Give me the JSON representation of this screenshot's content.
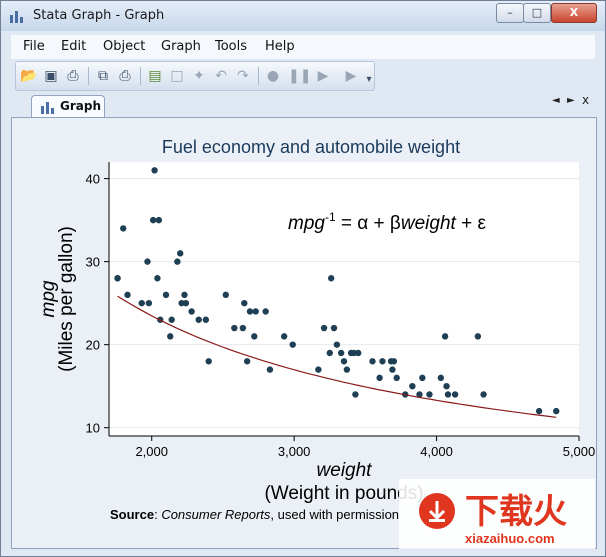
{
  "window": {
    "title": "Stata Graph - Graph",
    "controls": {
      "minimize": "–",
      "maximize": "□",
      "close": "X"
    }
  },
  "menu": [
    "File",
    "Edit",
    "Object",
    "Graph",
    "Tools",
    "Help"
  ],
  "toolbar": {
    "icons": [
      "open-icon",
      "save-icon",
      "print-icon",
      "copy-icon",
      "paste-icon",
      "graph-editor-icon",
      "select-icon",
      "pointer-icon",
      "undo-icon",
      "redo-icon",
      "record-icon",
      "pause-icon",
      "play-icon",
      "more-icon"
    ]
  },
  "tab": {
    "label": "Graph",
    "nav_left": "◄",
    "nav_right": "►",
    "close": "x"
  },
  "chart_data": {
    "type": "scatter",
    "title": "Fuel economy and automobile weight",
    "xlabel_var": "weight",
    "xlabel_desc": "(Weight in pounds)",
    "ylabel_var": "mpg",
    "ylabel_desc": "(Miles per gallon)",
    "xlim": [
      1700,
      5000
    ],
    "ylim": [
      9,
      42
    ],
    "xticks": [
      {
        "v": 2000,
        "label": "2,000"
      },
      {
        "v": 3000,
        "label": "3,000"
      },
      {
        "v": 4000,
        "label": "4,000"
      },
      {
        "v": 5000,
        "label": "5,000"
      }
    ],
    "yticks": [
      {
        "v": 10,
        "label": "10"
      },
      {
        "v": 20,
        "label": "20"
      },
      {
        "v": 30,
        "label": "30"
      },
      {
        "v": 40,
        "label": "40"
      }
    ],
    "grid": true,
    "annotation": {
      "var": "mpg",
      "sup": "-1",
      "eq": " = α + β",
      "var2": "weight",
      "tail": " + ε"
    },
    "note": {
      "prefix": "Source",
      "sep": ": ",
      "source": "Consumer Reports",
      "tail": ", used with permission"
    },
    "series": [
      {
        "points": [
          [
            1760,
            28
          ],
          [
            1800,
            34
          ],
          [
            1830,
            26
          ],
          [
            1760,
            28
          ],
          [
            1930,
            25
          ],
          [
            1970,
            30
          ],
          [
            1980,
            25
          ],
          [
            2020,
            41
          ],
          [
            2010,
            35
          ],
          [
            2050,
            35
          ],
          [
            2040,
            28
          ],
          [
            2060,
            23
          ],
          [
            2100,
            26
          ],
          [
            2130,
            21
          ],
          [
            2140,
            23
          ],
          [
            2180,
            30
          ],
          [
            2200,
            31
          ],
          [
            2210,
            25
          ],
          [
            2230,
            26
          ],
          [
            2240,
            25
          ],
          [
            2280,
            24
          ],
          [
            2330,
            23
          ],
          [
            2380,
            23
          ],
          [
            2400,
            18
          ],
          [
            2520,
            26
          ],
          [
            2580,
            22
          ],
          [
            2640,
            22
          ],
          [
            2650,
            25
          ],
          [
            2670,
            18
          ],
          [
            2690,
            24
          ],
          [
            2720,
            21
          ],
          [
            2730,
            24
          ],
          [
            2800,
            24
          ],
          [
            2830,
            17
          ],
          [
            2930,
            21
          ],
          [
            2990,
            20
          ],
          [
            3170,
            17
          ],
          [
            3210,
            22
          ],
          [
            3250,
            19
          ],
          [
            3260,
            28
          ],
          [
            3280,
            22
          ],
          [
            3300,
            20
          ],
          [
            3330,
            19
          ],
          [
            3350,
            18
          ],
          [
            3370,
            17
          ],
          [
            3400,
            19
          ],
          [
            3420,
            19
          ],
          [
            3450,
            19
          ],
          [
            3430,
            14
          ],
          [
            3550,
            18
          ],
          [
            3600,
            16
          ],
          [
            3620,
            18
          ],
          [
            3680,
            18
          ],
          [
            3690,
            17
          ],
          [
            3700,
            18
          ],
          [
            3720,
            16
          ],
          [
            3780,
            14
          ],
          [
            3830,
            15
          ],
          [
            3880,
            14
          ],
          [
            3900,
            16
          ],
          [
            3950,
            14
          ],
          [
            4030,
            16
          ],
          [
            4060,
            21
          ],
          [
            4070,
            15
          ],
          [
            4080,
            14
          ],
          [
            4130,
            14
          ],
          [
            4290,
            21
          ],
          [
            4330,
            14
          ],
          [
            4720,
            12
          ],
          [
            4840,
            12
          ]
        ],
        "color": "#1f3f55"
      }
    ],
    "fit": {
      "a": 0.01,
      "b": 1.63e-05,
      "color": "#8b1a1a",
      "xrange": [
        1760,
        4840
      ]
    }
  }
}
